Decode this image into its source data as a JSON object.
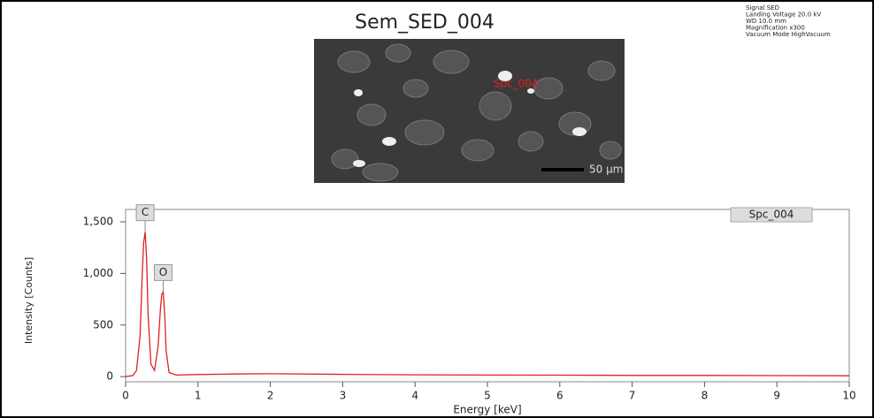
{
  "header": {
    "title": "Sem_SED_004",
    "metadata": [
      "Signal SED",
      "Landing Voltage 20.0 kV",
      "WD 10.0 mm",
      "Magnification x300",
      "Vacuum Mode HighVacuum"
    ]
  },
  "sem_image": {
    "marker_label": "Spc_004",
    "scale_bar": "50 µm"
  },
  "chart_data": {
    "type": "line",
    "xlabel": "Energy [keV]",
    "ylabel": "Intensity [Counts]",
    "x": [
      0,
      0.1,
      0.15,
      0.2,
      0.23,
      0.25,
      0.27,
      0.29,
      0.31,
      0.35,
      0.4,
      0.45,
      0.48,
      0.5,
      0.52,
      0.54,
      0.56,
      0.6,
      0.7,
      1,
      1.5,
      2,
      3,
      4,
      5,
      6,
      7,
      8,
      9,
      10
    ],
    "series": [
      {
        "name": "Spc_004",
        "color": "#e02020",
        "values": [
          0,
          10,
          60,
          400,
          1000,
          1300,
          1400,
          1150,
          600,
          120,
          60,
          300,
          650,
          800,
          820,
          600,
          250,
          40,
          15,
          20,
          25,
          28,
          22,
          18,
          15,
          14,
          12,
          12,
          10,
          8
        ]
      }
    ],
    "annotations": [
      {
        "text": "C",
        "x": 0.27,
        "y": 1400
      },
      {
        "text": "O",
        "x": 0.52,
        "y": 820
      }
    ],
    "legend": "upper right",
    "xlim": [
      0,
      10
    ],
    "xticks": [
      0,
      1,
      2,
      3,
      4,
      5,
      6,
      7,
      8,
      9,
      10
    ],
    "ylim": [
      -50,
      1620
    ],
    "yticks": [
      0,
      500,
      {
        "value": 1000,
        "label": "1,000"
      },
      {
        "value": 1500,
        "label": "1,500"
      }
    ]
  }
}
